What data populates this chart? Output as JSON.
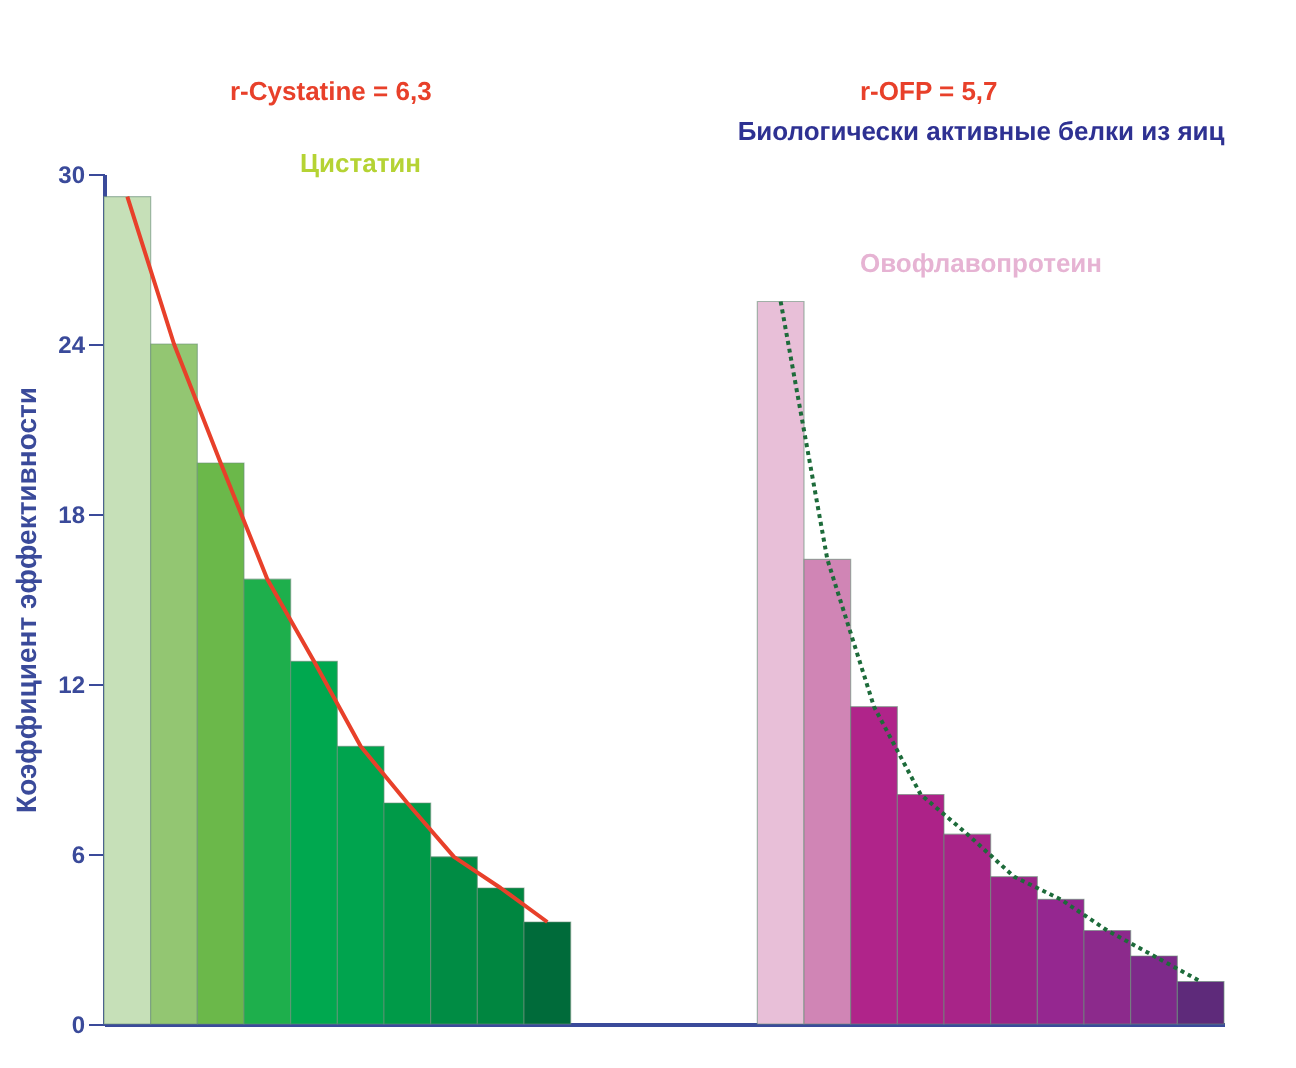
{
  "chart_data": {
    "type": "bar",
    "title": "Биологически активные белки из яиц",
    "ylabel": "Коэффициент эффективности",
    "annotations": [
      "r-Cystatine = 6,3",
      "r-OFP = 5,7",
      "Цистатин",
      "Овофлавопротеин"
    ],
    "categories": [
      null,
      null,
      null,
      null,
      null,
      null,
      null,
      null,
      null,
      null,
      null,
      null,
      null,
      null,
      null,
      null,
      null,
      null,
      null,
      null,
      null,
      null,
      null,
      null
    ],
    "series": [
      {
        "values": [
          29.2,
          24.0,
          19.8,
          15.7,
          12.8,
          9.8,
          7.8,
          5.9,
          4.8,
          3.6,
          null,
          null,
          null,
          null,
          25.5,
          16.4,
          11.2,
          8.1,
          6.7,
          5.2,
          4.4,
          3.3,
          2.4,
          1.5
        ],
        "colors": [
          "#c6e0b8",
          "#93c672",
          "#6bb84a",
          "#1eaf4c",
          "#00a84f",
          "#00a44e",
          "#009a48",
          "#008c44",
          "#008640",
          "#006b3a",
          null,
          null,
          null,
          null,
          "#e8bfd8",
          "#d085b5",
          "#b0248a",
          "#ad2288",
          "#a82488",
          "#9c2488",
          "#952790",
          "#8c2a8c",
          "#7e2a8a",
          "#5e2a7a"
        ]
      },
      {
        "type": "line",
        "color": "#e8402a",
        "line_style": "solid",
        "values": [
          29.2,
          24.0,
          19.8,
          15.7,
          12.8,
          9.8,
          7.8,
          5.9,
          4.8,
          3.6,
          null,
          null,
          null,
          null,
          null,
          null,
          null,
          null,
          null,
          null,
          null,
          null,
          null,
          null
        ]
      },
      {
        "type": "line",
        "color": "#1d6b3a",
        "line_style": "dotted",
        "values": [
          null,
          null,
          null,
          null,
          null,
          null,
          null,
          null,
          null,
          null,
          null,
          null,
          null,
          null,
          25.5,
          16.4,
          11.2,
          8.1,
          6.7,
          5.2,
          4.4,
          3.3,
          2.4,
          1.5
        ]
      }
    ],
    "ylim": [
      0,
      30
    ],
    "yticks": [
      0,
      6,
      12,
      18,
      24,
      30
    ],
    "tick_labels": "y",
    "grid": false,
    "legend": false
  }
}
